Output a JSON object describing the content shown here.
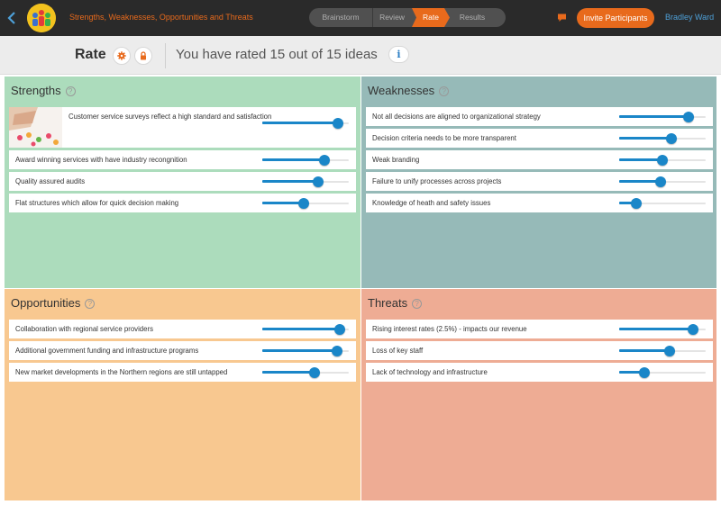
{
  "header": {
    "title": "Strengths, Weaknesses, Opportunities and Threats",
    "steps": [
      {
        "label": "Brainstorm",
        "active": false
      },
      {
        "label": "Review",
        "active": false
      },
      {
        "label": "Rate",
        "active": true
      },
      {
        "label": "Results",
        "active": false
      }
    ],
    "invite_label": "Invite Participants",
    "user_name": "Bradley Ward",
    "accent_color": "#e86a1c",
    "link_color": "#4ea0d8"
  },
  "subheader": {
    "title": "Rate",
    "rated_text": "You have rated 15 out of 15 ideas",
    "info_label": "i"
  },
  "quadrants": {
    "strengths": {
      "title": "Strengths",
      "color": "#acdcbc",
      "ideas": [
        {
          "text": "Customer service surveys reflect a high standard and satisfaction",
          "rating": 0.88,
          "has_image": true
        },
        {
          "text": "Award winning services with have industry recongnition",
          "rating": 0.72
        },
        {
          "text": "Quality assured audits",
          "rating": 0.65
        },
        {
          "text": "Flat structures which allow for quick decision making",
          "rating": 0.48
        }
      ]
    },
    "weaknesses": {
      "title": "Weaknesses",
      "color": "#96bab8",
      "ideas": [
        {
          "text": "Not all decisions are aligned to organizational strategy",
          "rating": 0.8
        },
        {
          "text": "Decision criteria needs to be more transparent",
          "rating": 0.6
        },
        {
          "text": "Weak branding",
          "rating": 0.5
        },
        {
          "text": "Failure to unify processes across projects",
          "rating": 0.48
        },
        {
          "text": "Knowledge of heath and safety issues",
          "rating": 0.2
        }
      ]
    },
    "opportunities": {
      "title": "Opportunities",
      "color": "#f8c890",
      "ideas": [
        {
          "text": "Collaboration with regional service providers",
          "rating": 0.9
        },
        {
          "text": "Additional government funding and infrastructure programs",
          "rating": 0.86
        },
        {
          "text": "New market developments in the Northern regions are still untapped",
          "rating": 0.6
        }
      ]
    },
    "threats": {
      "title": "Threats",
      "color": "#eeac94",
      "ideas": [
        {
          "text": "Rising interest rates (2.5%) - impacts our revenue",
          "rating": 0.85
        },
        {
          "text": "Loss of key staff",
          "rating": 0.58
        },
        {
          "text": "Lack of technology and infrastructure",
          "rating": 0.29
        }
      ]
    }
  },
  "icons": {
    "back": "chevron-left-icon",
    "chat": "chat-bubble-icon",
    "settings": "gear-icon",
    "lock": "lock-icon",
    "help": "question-mark-icon",
    "slider_color": "#1a86c8"
  }
}
